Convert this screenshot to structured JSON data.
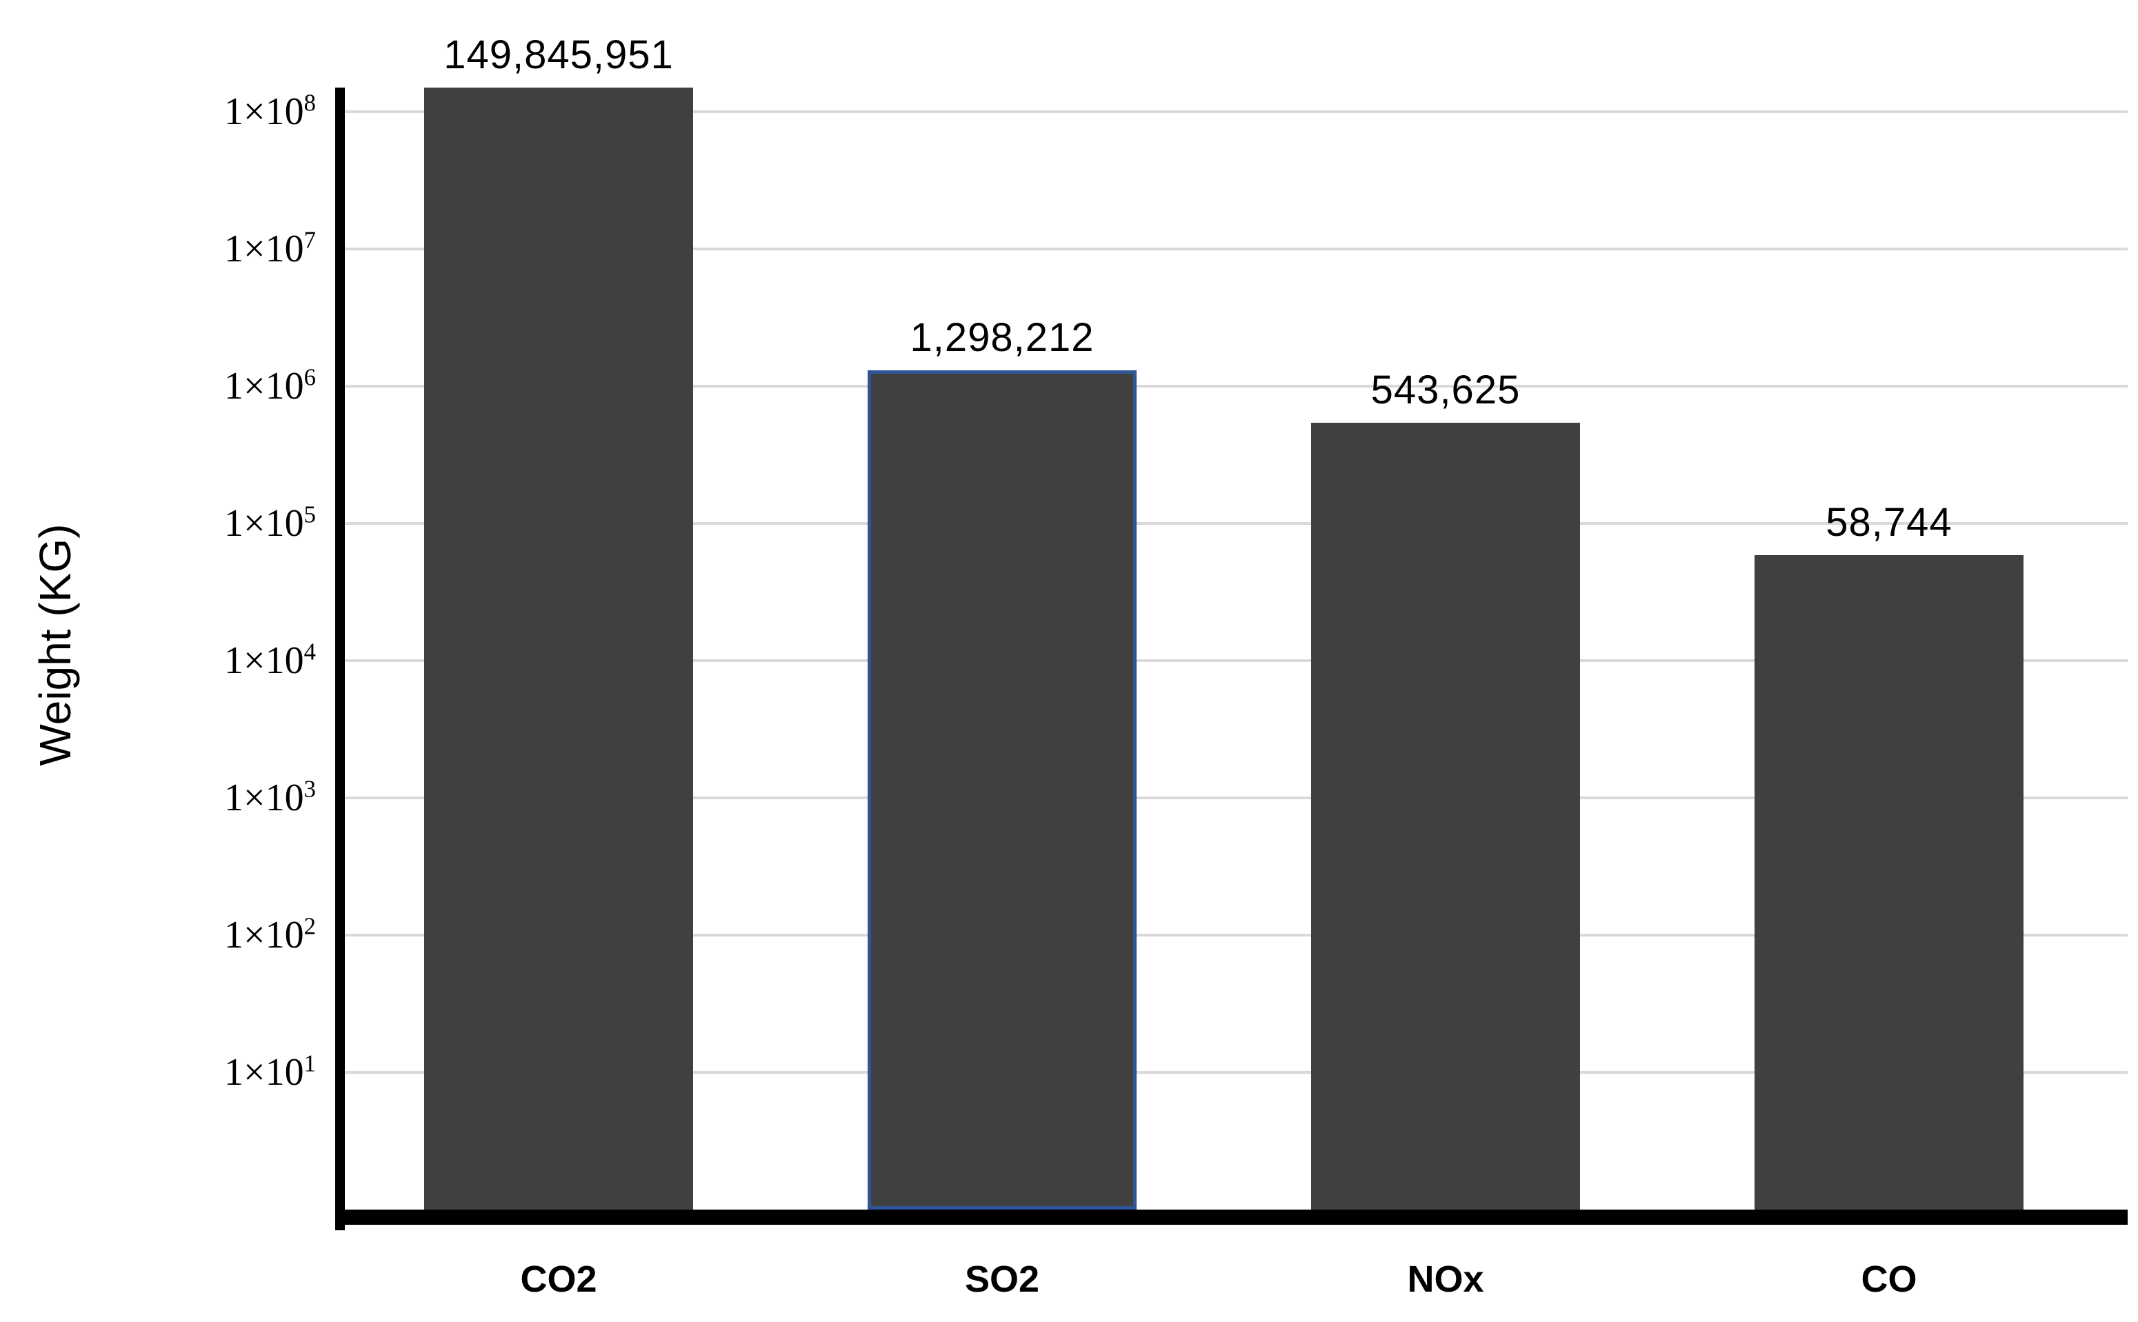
{
  "chart_data": {
    "type": "bar",
    "title": "",
    "xlabel": "",
    "ylabel": "Weight (KG)",
    "categories": [
      "CO2",
      "SO2",
      "NOx",
      "CO"
    ],
    "values": [
      149845951,
      1298212,
      543625,
      58744
    ],
    "data_labels": [
      "149,845,951",
      "1,298,212",
      "543,625",
      "58,744"
    ],
    "yscale": "log10",
    "ytick_mantissa": "1×10",
    "ytick_exponents": [
      8,
      7,
      6,
      5,
      4,
      3,
      2,
      1
    ],
    "ylim_exponents": [
      0,
      8.2
    ],
    "grid": true,
    "legend": false,
    "highlighted_category": "SO2",
    "colors": {
      "bar_fill": "#404040",
      "highlight_border": "#2F5597",
      "gridline": "#D9D9D9",
      "axis": "#000000",
      "background": "#FFFFFF",
      "text": "#000000"
    }
  }
}
